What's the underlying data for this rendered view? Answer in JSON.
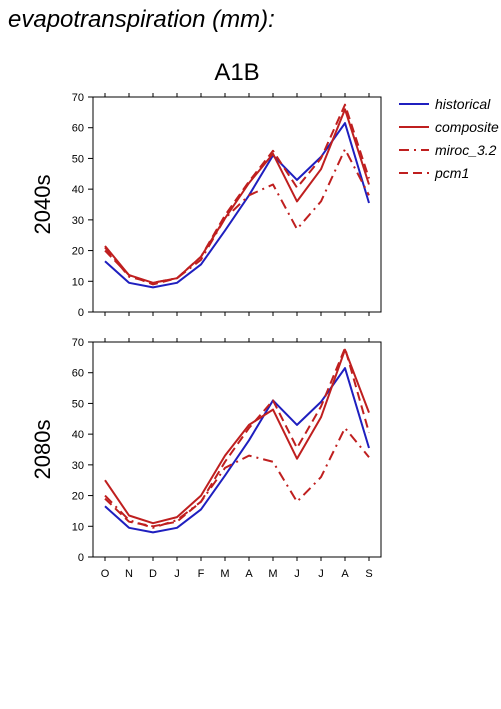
{
  "page_title": "evapotranspiration (mm):",
  "colors": {
    "historical": "#1f1fbf",
    "projection": "#bf1f1f",
    "axis": "#000000"
  },
  "chart_data": [
    {
      "type": "line",
      "title": "A1B",
      "ylabel": "2040s",
      "xlabel": "",
      "categories": [
        "O",
        "N",
        "D",
        "J",
        "F",
        "M",
        "A",
        "M",
        "J",
        "J",
        "A",
        "S"
      ],
      "ylim": [
        0,
        70
      ],
      "yticks": [
        0,
        10,
        20,
        30,
        40,
        50,
        60,
        70
      ],
      "grid": false,
      "legend": "right",
      "series": [
        {
          "name": "historical",
          "style": "solid",
          "color": "#1f1fbf",
          "values": [
            16.5,
            9.5,
            8,
            9.5,
            15.5,
            26.5,
            38,
            51,
            43,
            50.5,
            61.5,
            35.5
          ]
        },
        {
          "name": "composite",
          "style": "solid",
          "color": "#bf1f1f",
          "values": [
            21.5,
            12,
            9.5,
            11,
            18,
            30.5,
            42,
            51.5,
            36,
            46.5,
            66,
            41.5
          ]
        },
        {
          "name": "miroc_3.2",
          "style": "dashdot",
          "color": "#bf1f1f",
          "values": [
            21,
            11.5,
            9.5,
            11,
            17,
            30.5,
            38,
            41.5,
            27,
            36,
            53,
            38
          ]
        },
        {
          "name": "pcm1",
          "style": "dashed",
          "color": "#bf1f1f",
          "values": [
            20,
            12,
            9,
            11,
            18,
            31.5,
            42.5,
            52.5,
            40.5,
            50,
            67.5,
            43.5
          ]
        }
      ]
    },
    {
      "type": "line",
      "title": "",
      "ylabel": "2080s",
      "xlabel": "",
      "categories": [
        "O",
        "N",
        "D",
        "J",
        "F",
        "M",
        "A",
        "M",
        "J",
        "J",
        "A",
        "S"
      ],
      "ylim": [
        0,
        70
      ],
      "yticks": [
        0,
        10,
        20,
        30,
        40,
        50,
        60,
        70
      ],
      "grid": false,
      "series": [
        {
          "name": "historical",
          "style": "solid",
          "color": "#1f1fbf",
          "values": [
            16.5,
            9.5,
            8,
            9.5,
            15.5,
            26.5,
            38,
            51,
            43,
            50.5,
            61.5,
            35.5
          ]
        },
        {
          "name": "composite",
          "style": "solid",
          "color": "#bf1f1f",
          "values": [
            25,
            13.5,
            11,
            13,
            20,
            33,
            43,
            48,
            32,
            45.5,
            67.5,
            47
          ]
        },
        {
          "name": "miroc_3.2",
          "style": "dashdot",
          "color": "#bf1f1f",
          "values": [
            20,
            12,
            9.5,
            12,
            18,
            29,
            33,
            31,
            18,
            26,
            42,
            32.5
          ]
        },
        {
          "name": "pcm1",
          "style": "dashed",
          "color": "#bf1f1f",
          "values": [
            19,
            11.5,
            10,
            11.5,
            18,
            31,
            42,
            51,
            35.5,
            49,
            68,
            40.5
          ]
        }
      ]
    }
  ]
}
